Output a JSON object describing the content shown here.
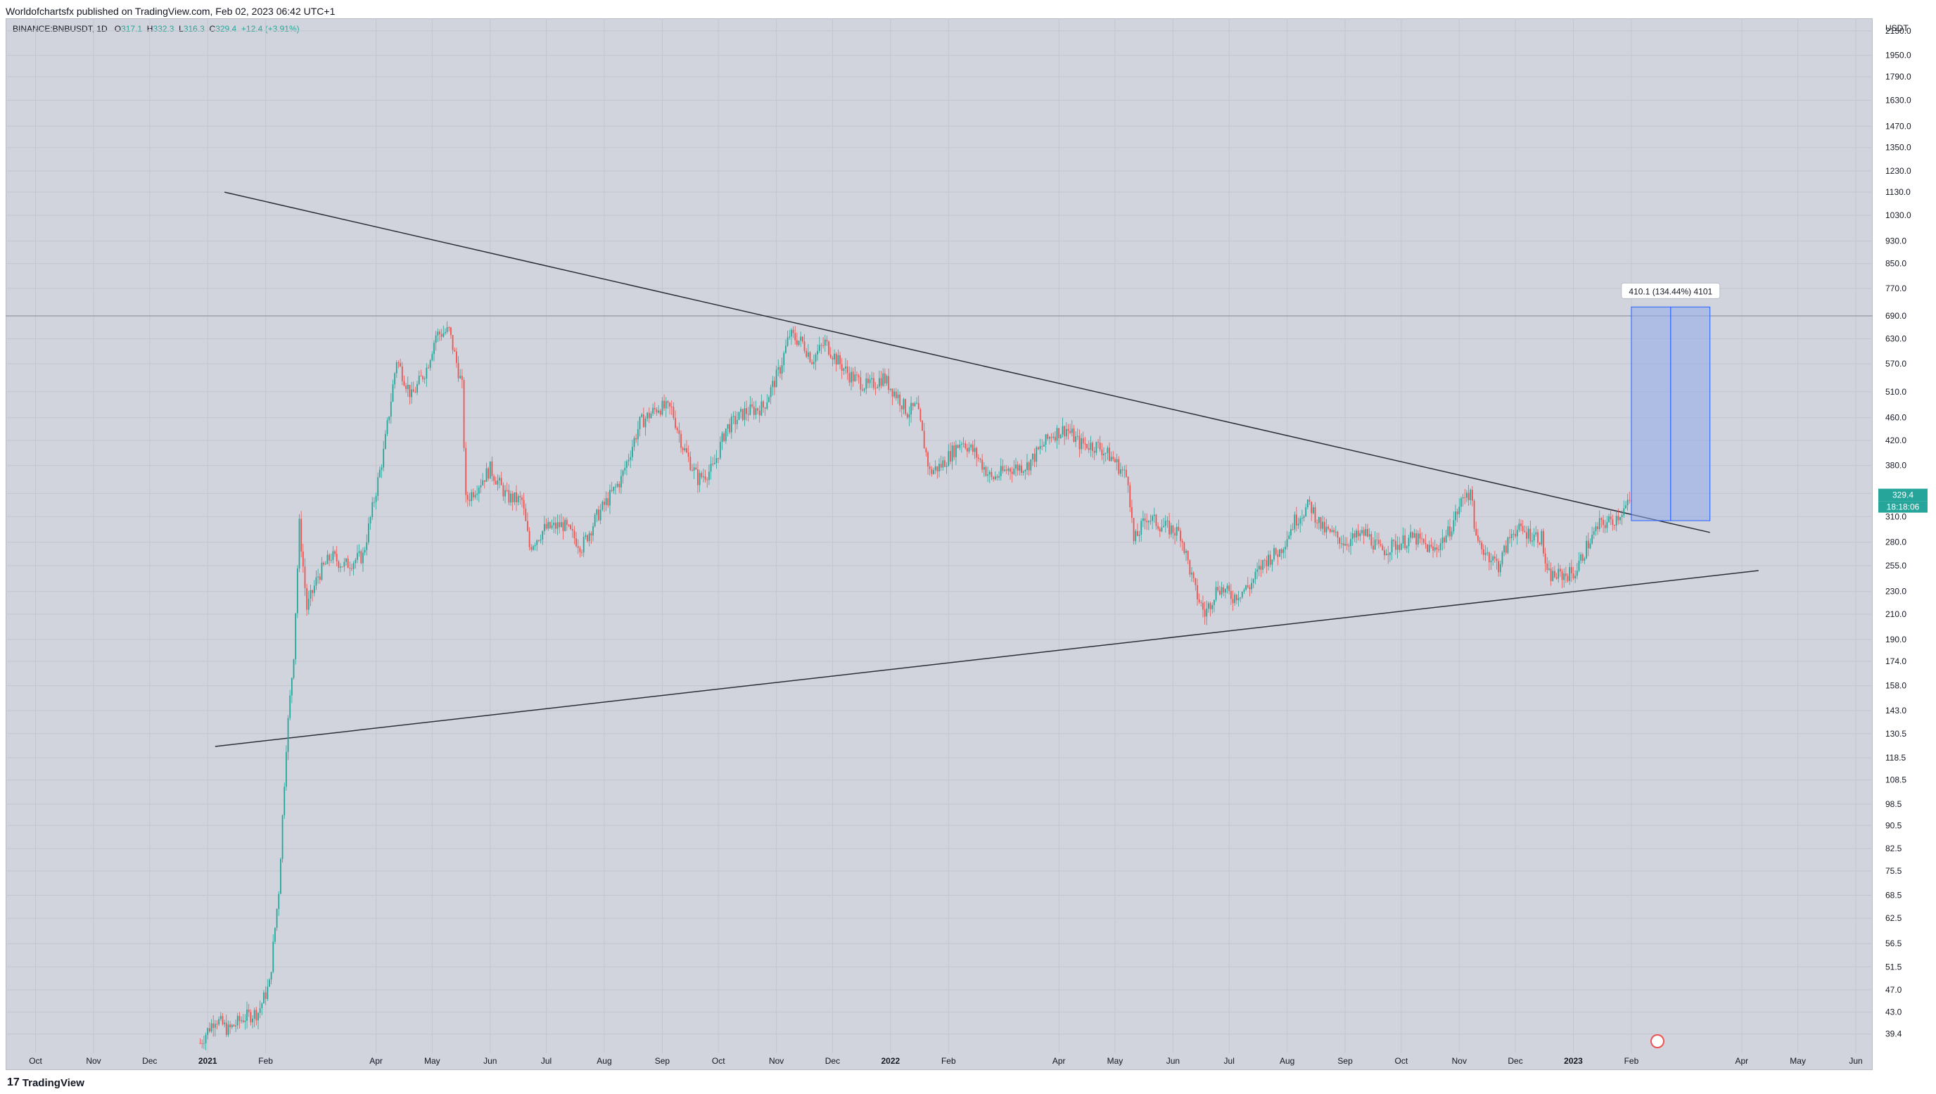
{
  "header": {
    "publisher_line": "Worldofchartsfx published on TradingView.com, Feb 02, 2023 06:42 UTC+1"
  },
  "symbol": {
    "name": "BINANCE:BNBUSDT, 1D",
    "open_label": "O",
    "open": "317.1",
    "high_label": "H",
    "high": "332.3",
    "low_label": "L",
    "low": "316.3",
    "close_label": "C",
    "close": "329.4",
    "change": "+12.4 (+3.91%)"
  },
  "footer": {
    "logo_text": "TradingView"
  },
  "colors": {
    "up": "#26a69a",
    "down": "#ef5350",
    "background": "#d1d4dc",
    "trendline": "#2a2e39",
    "measure_fill": "#8fa9ea",
    "measure_line": "#2962ff"
  },
  "chart_data": {
    "type": "candlestick",
    "title": "BINANCE:BNBUSDT, 1D",
    "ylabel": "USDT",
    "y_scale": "log",
    "ylim": [
      36.5,
      2260
    ],
    "x_tick_labels": [
      "Oct",
      "Nov",
      "Dec",
      "2021",
      "Feb",
      "Apr",
      "May",
      "Jun",
      "Jul",
      "Aug",
      "Sep",
      "Oct",
      "Nov",
      "Dec",
      "2022",
      "Feb",
      "Apr",
      "May",
      "Jun",
      "Jul",
      "Aug",
      "Sep",
      "Oct",
      "Nov",
      "Dec",
      "2023",
      "Feb",
      "Apr",
      "May",
      "Jun"
    ],
    "y_tick_labels": [
      "2150.0",
      "1950.0",
      "1790.0",
      "1630.0",
      "1470.0",
      "1350.0",
      "1230.0",
      "1130.0",
      "1030.0",
      "930.0",
      "850.0",
      "770.0",
      "690.0",
      "630.0",
      "570.0",
      "510.0",
      "460.0",
      "420.0",
      "380.0",
      "340.0",
      "310.0",
      "280.0",
      "255.0",
      "230.0",
      "210.0",
      "190.0",
      "174.0",
      "158.0",
      "143.0",
      "130.5",
      "118.5",
      "108.5",
      "98.5",
      "90.5",
      "82.5",
      "75.5",
      "68.5",
      "62.5",
      "56.5",
      "51.5",
      "47.0",
      "43.0",
      "39.4"
    ],
    "current_price_label": "329.4",
    "countdown_label": "18:18:06",
    "horizontal_level": 690,
    "series_path": [
      {
        "date": "2020-12-28",
        "close": 38
      },
      {
        "date": "2021-01-05",
        "close": 42
      },
      {
        "date": "2021-01-12",
        "close": 40
      },
      {
        "date": "2021-01-20",
        "close": 42
      },
      {
        "date": "2021-01-28",
        "close": 43
      },
      {
        "date": "2021-02-03",
        "close": 48
      },
      {
        "date": "2021-02-08",
        "close": 70
      },
      {
        "date": "2021-02-12",
        "close": 125
      },
      {
        "date": "2021-02-16",
        "close": 180
      },
      {
        "date": "2021-02-19",
        "close": 300
      },
      {
        "date": "2021-02-23",
        "close": 215
      },
      {
        "date": "2021-03-01",
        "close": 245
      },
      {
        "date": "2021-03-08",
        "close": 265
      },
      {
        "date": "2021-03-15",
        "close": 255
      },
      {
        "date": "2021-03-25",
        "close": 265
      },
      {
        "date": "2021-04-05",
        "close": 400
      },
      {
        "date": "2021-04-12",
        "close": 580
      },
      {
        "date": "2021-04-20",
        "close": 500
      },
      {
        "date": "2021-04-28",
        "close": 560
      },
      {
        "date": "2021-05-03",
        "close": 640
      },
      {
        "date": "2021-05-10",
        "close": 650
      },
      {
        "date": "2021-05-17",
        "close": 520
      },
      {
        "date": "2021-05-19",
        "close": 330
      },
      {
        "date": "2021-05-25",
        "close": 350
      },
      {
        "date": "2021-06-01",
        "close": 375
      },
      {
        "date": "2021-06-10",
        "close": 335
      },
      {
        "date": "2021-06-18",
        "close": 330
      },
      {
        "date": "2021-06-22",
        "close": 275
      },
      {
        "date": "2021-06-30",
        "close": 295
      },
      {
        "date": "2021-07-10",
        "close": 300
      },
      {
        "date": "2021-07-20",
        "close": 275
      },
      {
        "date": "2021-07-28",
        "close": 310
      },
      {
        "date": "2021-08-10",
        "close": 360
      },
      {
        "date": "2021-08-20",
        "close": 450
      },
      {
        "date": "2021-08-30",
        "close": 480
      },
      {
        "date": "2021-09-06",
        "close": 475
      },
      {
        "date": "2021-09-12",
        "close": 410
      },
      {
        "date": "2021-09-20",
        "close": 360
      },
      {
        "date": "2021-09-28",
        "close": 375
      },
      {
        "date": "2021-10-05",
        "close": 440
      },
      {
        "date": "2021-10-15",
        "close": 470
      },
      {
        "date": "2021-10-25",
        "close": 480
      },
      {
        "date": "2021-11-03",
        "close": 560
      },
      {
        "date": "2021-11-08",
        "close": 640
      },
      {
        "date": "2021-11-15",
        "close": 620
      },
      {
        "date": "2021-11-20",
        "close": 580
      },
      {
        "date": "2021-11-27",
        "close": 620
      },
      {
        "date": "2021-12-04",
        "close": 575
      },
      {
        "date": "2021-12-10",
        "close": 545
      },
      {
        "date": "2021-12-20",
        "close": 520
      },
      {
        "date": "2021-12-28",
        "close": 540
      },
      {
        "date": "2022-01-05",
        "close": 500
      },
      {
        "date": "2022-01-10",
        "close": 470
      },
      {
        "date": "2022-01-15",
        "close": 480
      },
      {
        "date": "2022-01-22",
        "close": 370
      },
      {
        "date": "2022-01-28",
        "close": 380
      },
      {
        "date": "2022-02-08",
        "close": 420
      },
      {
        "date": "2022-02-15",
        "close": 400
      },
      {
        "date": "2022-02-24",
        "close": 360
      },
      {
        "date": "2022-03-05",
        "close": 375
      },
      {
        "date": "2022-03-15",
        "close": 380
      },
      {
        "date": "2022-03-28",
        "close": 430
      },
      {
        "date": "2022-04-05",
        "close": 440
      },
      {
        "date": "2022-04-12",
        "close": 415
      },
      {
        "date": "2022-04-22",
        "close": 410
      },
      {
        "date": "2022-04-30",
        "close": 390
      },
      {
        "date": "2022-05-08",
        "close": 360
      },
      {
        "date": "2022-05-11",
        "close": 280
      },
      {
        "date": "2022-05-18",
        "close": 310
      },
      {
        "date": "2022-05-25",
        "close": 300
      },
      {
        "date": "2022-06-05",
        "close": 290
      },
      {
        "date": "2022-06-13",
        "close": 230
      },
      {
        "date": "2022-06-18",
        "close": 210
      },
      {
        "date": "2022-06-25",
        "close": 235
      },
      {
        "date": "2022-07-03",
        "close": 225
      },
      {
        "date": "2022-07-12",
        "close": 235
      },
      {
        "date": "2022-07-20",
        "close": 260
      },
      {
        "date": "2022-07-28",
        "close": 270
      },
      {
        "date": "2022-08-05",
        "close": 305
      },
      {
        "date": "2022-08-13",
        "close": 325
      },
      {
        "date": "2022-08-20",
        "close": 295
      },
      {
        "date": "2022-09-01",
        "close": 280
      },
      {
        "date": "2022-09-12",
        "close": 290
      },
      {
        "date": "2022-09-20",
        "close": 270
      },
      {
        "date": "2022-10-01",
        "close": 280
      },
      {
        "date": "2022-10-08",
        "close": 285
      },
      {
        "date": "2022-10-18",
        "close": 270
      },
      {
        "date": "2022-10-26",
        "close": 290
      },
      {
        "date": "2022-11-05",
        "close": 345
      },
      {
        "date": "2022-11-08",
        "close": 330
      },
      {
        "date": "2022-11-10",
        "close": 280
      },
      {
        "date": "2022-11-15",
        "close": 270
      },
      {
        "date": "2022-11-22",
        "close": 255
      },
      {
        "date": "2022-11-30",
        "close": 295
      },
      {
        "date": "2022-12-08",
        "close": 290
      },
      {
        "date": "2022-12-15",
        "close": 285
      },
      {
        "date": "2022-12-18",
        "close": 245
      },
      {
        "date": "2022-12-25",
        "close": 245
      },
      {
        "date": "2023-01-02",
        "close": 248
      },
      {
        "date": "2023-01-08",
        "close": 275
      },
      {
        "date": "2023-01-15",
        "close": 300
      },
      {
        "date": "2023-01-22",
        "close": 305
      },
      {
        "date": "2023-02-01",
        "close": 329.4
      }
    ],
    "upper_trendline": [
      {
        "date": "2021-01-10",
        "price": 1130
      },
      {
        "date": "2023-03-15",
        "price": 291
      }
    ],
    "lower_trendline": [
      {
        "date": "2021-01-05",
        "price": 124
      },
      {
        "date": "2023-04-10",
        "price": 250
      }
    ],
    "measure": {
      "label": "410.1 (134.44%) 4101",
      "start_date": "2023-02-01",
      "end_date": "2023-03-15",
      "from_price": 305,
      "to_price": 715
    },
    "grid": true,
    "legend": "none"
  }
}
